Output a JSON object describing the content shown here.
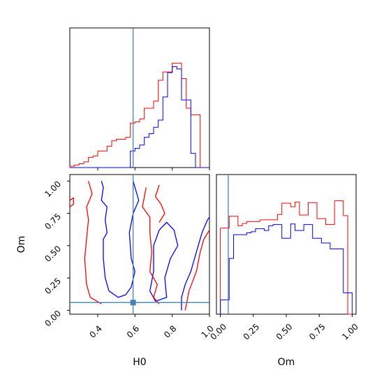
{
  "chart_data": {
    "type": "corner",
    "parameters": [
      "H0",
      "Om"
    ],
    "truth": {
      "H0": 0.59,
      "Om": 0.06
    },
    "colors": {
      "series_red": "#ff0000",
      "series_blue": "#0000ff",
      "truth": "#4682b4"
    },
    "panels": [
      {
        "id": "hist_H0",
        "type": "histogram",
        "param": "H0",
        "xlim": [
          0.25,
          1.0
        ],
        "ylim": [
          0,
          1.0
        ],
        "bin_edges": [
          0.25,
          0.275,
          0.3,
          0.325,
          0.35,
          0.375,
          0.4,
          0.425,
          0.45,
          0.475,
          0.5,
          0.525,
          0.55,
          0.575,
          0.6,
          0.625,
          0.65,
          0.675,
          0.7,
          0.725,
          0.75,
          0.775,
          0.8,
          0.825,
          0.85,
          0.875,
          0.9,
          0.925,
          0.95,
          0.975,
          1.0
        ],
        "series": [
          {
            "color": "#ff0000",
            "heights": [
              0.012,
              0.022,
              0.032,
              0.048,
              0.086,
              0.098,
              0.14,
              0.14,
              0.18,
              0.225,
              0.238,
              0.238,
              0.255,
              0.375,
              0.385,
              0.41,
              0.5,
              0.5,
              0.56,
              0.735,
              0.805,
              0.805,
              0.88,
              0.88,
              0.75,
              0.5,
              0.445,
              0.445,
              0.0,
              0.0
            ]
          },
          {
            "color": "#0000ff",
            "heights": [
              0.0,
              0.0,
              0.0,
              0.0,
              0.0,
              0.0,
              0.0,
              0.0,
              0.0,
              0.0,
              0.0,
              0.0,
              0.0,
              0.14,
              0.162,
              0.19,
              0.255,
              0.285,
              0.34,
              0.4,
              0.595,
              0.8,
              0.85,
              0.83,
              0.57,
              0.57,
              0.12,
              0.0,
              0.0,
              0.0
            ]
          }
        ]
      },
      {
        "id": "hist_Om",
        "type": "histogram",
        "param": "Om",
        "xlim": [
          -0.03,
          1.03
        ],
        "ylim": [
          0,
          1.0
        ],
        "bin_edges": [
          0.0,
          0.0333,
          0.0667,
          0.1,
          0.1333,
          0.1667,
          0.2,
          0.2333,
          0.2667,
          0.3,
          0.3333,
          0.3667,
          0.4,
          0.4333,
          0.4667,
          0.5,
          0.5333,
          0.5667,
          0.6,
          0.6333,
          0.6667,
          0.7,
          0.7333,
          0.7667,
          0.8,
          0.8333,
          0.8667,
          0.9,
          0.9333,
          0.9667,
          1.0
        ],
        "series": [
          {
            "color": "#ff0000",
            "heights": [
              0.725,
              0.725,
              0.825,
              0.825,
              0.745,
              0.765,
              0.78,
              0.78,
              0.78,
              0.795,
              0.795,
              0.795,
              0.795,
              0.84,
              0.935,
              0.935,
              0.905,
              0.945,
              0.835,
              0.835,
              0.94,
              0.94,
              0.805,
              0.805,
              0.755,
              0.755,
              0.955,
              0.955,
              0.83,
              0.0
            ]
          },
          {
            "color": "#0000ff",
            "heights": [
              0.12,
              0.12,
              0.47,
              0.67,
              0.67,
              0.67,
              0.685,
              0.695,
              0.72,
              0.72,
              0.705,
              0.745,
              0.755,
              0.755,
              0.64,
              0.64,
              0.76,
              0.705,
              0.705,
              0.755,
              0.755,
              0.64,
              0.64,
              0.6,
              0.6,
              0.55,
              0.55,
              0.55,
              0.18,
              0.18
            ]
          }
        ]
      },
      {
        "id": "contour_H0_Om",
        "type": "contour",
        "x_param": "H0",
        "y_param": "Om",
        "xlim": [
          0.25,
          1.0
        ],
        "ylim": [
          -0.03,
          1.05
        ],
        "xticks": [
          "0.4",
          "0.6",
          "0.8",
          "1.0"
        ],
        "yticks": [
          "0.00",
          "0.25",
          "0.50",
          "0.75",
          "1.00"
        ],
        "xlabel": "H0",
        "ylabel": "Om",
        "contours": [
          {
            "color": "#0000ff",
            "points": [
              [
                0.42,
                1.0
              ],
              [
                0.43,
                0.95
              ],
              [
                0.42,
                0.85
              ],
              [
                0.45,
                0.8
              ],
              [
                0.44,
                0.7
              ],
              [
                0.45,
                0.6
              ],
              [
                0.43,
                0.55
              ],
              [
                0.43,
                0.4
              ],
              [
                0.44,
                0.25
              ],
              [
                0.46,
                0.15
              ],
              [
                0.51,
                0.1
              ],
              [
                0.55,
                0.12
              ],
              [
                0.58,
                0.18
              ],
              [
                0.6,
                0.3
              ],
              [
                0.58,
                0.4
              ],
              [
                0.57,
                0.6
              ],
              [
                0.59,
                0.75
              ],
              [
                0.62,
                0.85
              ],
              [
                0.59,
                1.0
              ]
            ],
            "closed": false
          },
          {
            "color": "#0000ff",
            "points": [
              [
                0.73,
                0.62
              ],
              [
                0.7,
                0.5
              ],
              [
                0.7,
                0.3
              ],
              [
                0.68,
                0.15
              ],
              [
                0.71,
                0.07
              ],
              [
                0.77,
                0.1
              ],
              [
                0.76,
                0.25
              ],
              [
                0.79,
                0.4
              ],
              [
                0.83,
                0.5
              ],
              [
                0.81,
                0.62
              ],
              [
                0.77,
                0.68
              ]
            ],
            "closed": true
          },
          {
            "color": "#0000ff",
            "points": [
              [
                0.85,
                0.0
              ],
              [
                0.85,
                0.1
              ],
              [
                0.87,
                0.2
              ],
              [
                0.9,
                0.3
              ],
              [
                0.93,
                0.45
              ],
              [
                0.96,
                0.6
              ],
              [
                0.99,
                0.7
              ],
              [
                1.0,
                0.72
              ]
            ],
            "closed": false
          },
          {
            "color": "#ff0000",
            "points": [
              [
                0.35,
                1.0
              ],
              [
                0.37,
                0.9
              ],
              [
                0.34,
                0.8
              ],
              [
                0.35,
                0.7
              ],
              [
                0.34,
                0.55
              ],
              [
                0.33,
                0.4
              ],
              [
                0.34,
                0.2
              ],
              [
                0.36,
                0.1
              ],
              [
                0.42,
                0.05
              ]
            ],
            "closed": false
          },
          {
            "color": "#ff0000",
            "points": [
              [
                0.66,
                0.95
              ],
              [
                0.64,
                0.8
              ],
              [
                0.68,
                0.72
              ],
              [
                0.68,
                0.6
              ],
              [
                0.69,
                0.45
              ],
              [
                0.68,
                0.3
              ],
              [
                0.72,
                0.2
              ],
              [
                0.7,
                0.1
              ],
              [
                0.73,
                0.05
              ]
            ],
            "closed": false
          },
          {
            "color": "#ff0000",
            "points": [
              [
                0.73,
                0.97
              ],
              [
                0.71,
                0.88
              ],
              [
                0.74,
                0.82
              ],
              [
                0.76,
                0.75
              ],
              [
                0.73,
                0.68
              ]
            ],
            "closed": false
          },
          {
            "color": "#ff0000",
            "points": [
              [
                0.87,
                0.0
              ],
              [
                0.89,
                0.15
              ],
              [
                0.93,
                0.3
              ],
              [
                0.95,
                0.45
              ],
              [
                0.97,
                0.55
              ],
              [
                1.0,
                0.62
              ]
            ],
            "closed": false
          },
          {
            "color": "#ff0000",
            "points": [
              [
                0.25,
                0.85
              ],
              [
                0.27,
                0.87
              ],
              [
                0.27,
                0.82
              ],
              [
                0.25,
                0.8
              ]
            ],
            "closed": false
          }
        ]
      }
    ]
  }
}
